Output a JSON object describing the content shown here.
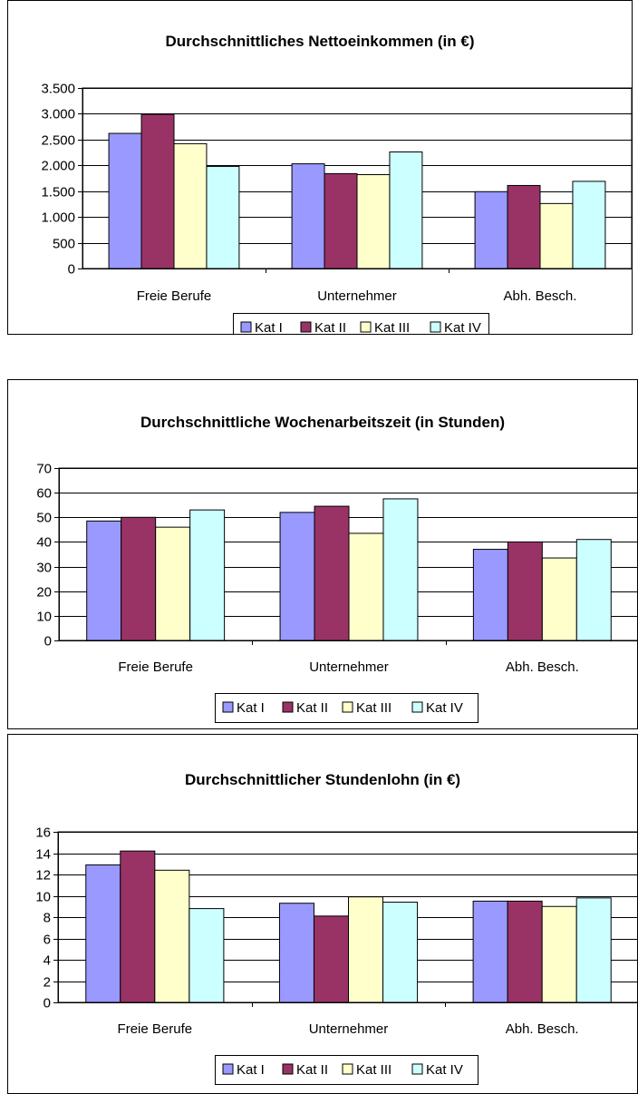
{
  "colors": {
    "kat1": "#9999ff",
    "kat2": "#993366",
    "kat3": "#ffffcc",
    "kat4": "#ccffff",
    "grid": "#000000",
    "plot_bg": "#ffffff"
  },
  "chart_data": [
    {
      "type": "bar",
      "title": "Durchschnittliches Nettoeinkommen (in €)",
      "categories": [
        "Freie Berufe",
        "Unternehmer",
        "Abh. Besch."
      ],
      "series": [
        {
          "name": "Kat I",
          "values": [
            2620,
            2030,
            1490
          ]
        },
        {
          "name": "Kat II",
          "values": [
            2990,
            1840,
            1610
          ]
        },
        {
          "name": "Kat III",
          "values": [
            2420,
            1820,
            1260
          ]
        },
        {
          "name": "Kat IV",
          "values": [
            1980,
            2260,
            1690
          ]
        }
      ],
      "ylim": [
        0,
        3500
      ],
      "yticks": [
        0,
        500,
        1000,
        1500,
        2000,
        2500,
        3000,
        3500
      ],
      "ytick_labels": [
        "0",
        "500",
        "1.000",
        "1.500",
        "2.000",
        "2.500",
        "3.000",
        "3.500"
      ],
      "grid": true,
      "legend": "bottom"
    },
    {
      "type": "bar",
      "title": "Durchschnittliche Wochenarbeitszeit (in Stunden)",
      "categories": [
        "Freie Berufe",
        "Unternehmer",
        "Abh. Besch."
      ],
      "series": [
        {
          "name": "Kat I",
          "values": [
            48.5,
            52.0,
            37.0
          ]
        },
        {
          "name": "Kat II",
          "values": [
            50.0,
            54.5,
            40.0
          ]
        },
        {
          "name": "Kat III",
          "values": [
            46.0,
            43.5,
            33.5
          ]
        },
        {
          "name": "Kat IV",
          "values": [
            53.0,
            57.5,
            41.0
          ]
        }
      ],
      "ylim": [
        0,
        70
      ],
      "yticks": [
        0,
        10,
        20,
        30,
        40,
        50,
        60,
        70
      ],
      "ytick_labels": [
        "0",
        "10",
        "20",
        "30",
        "40",
        "50",
        "60",
        "70"
      ],
      "grid": true,
      "legend": "bottom"
    },
    {
      "type": "bar",
      "title": "Durchschnittlicher Stundenlohn (in €)",
      "categories": [
        "Freie Berufe",
        "Unternehmer",
        "Abh. Besch."
      ],
      "series": [
        {
          "name": "Kat I",
          "values": [
            12.9,
            9.3,
            9.5
          ]
        },
        {
          "name": "Kat II",
          "values": [
            14.2,
            8.1,
            9.5
          ]
        },
        {
          "name": "Kat III",
          "values": [
            12.4,
            9.9,
            9.0
          ]
        },
        {
          "name": "Kat IV",
          "values": [
            8.8,
            9.4,
            9.8
          ]
        }
      ],
      "ylim": [
        0,
        16
      ],
      "yticks": [
        0,
        2,
        4,
        6,
        8,
        10,
        12,
        14,
        16
      ],
      "ytick_labels": [
        "0",
        "2",
        "4",
        "6",
        "8",
        "10",
        "12",
        "14",
        "16"
      ],
      "grid": true,
      "legend": "bottom"
    }
  ]
}
